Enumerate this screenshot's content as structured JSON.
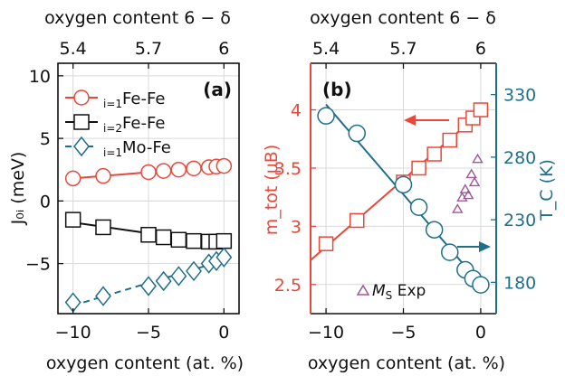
{
  "colors": {
    "red": "#e8473a",
    "black": "#111111",
    "teal": "#1f6f8b",
    "purple": "#a0579a",
    "grid": "#d9d9d9"
  },
  "chart_data": [
    {
      "type": "line",
      "panel_label": "(a)",
      "xlabel": "oxygen content (at. %)",
      "top_xlabel": "oxygen content 6 − δ",
      "ylabel": "J₀ᵢ (meV)",
      "xlim": [
        -11,
        1
      ],
      "ylim": [
        -9,
        11
      ],
      "xticks": [
        -10,
        -5,
        0
      ],
      "xtick_labels": [
        "−10",
        "−5",
        "0"
      ],
      "top_xticks": [
        -10,
        -5,
        0
      ],
      "top_xtick_labels": [
        "5.4",
        "5.7",
        "6"
      ],
      "yticks": [
        -5,
        0,
        5,
        10
      ],
      "ytick_labels": [
        "−5",
        "0",
        "5",
        "10"
      ],
      "grid": true,
      "legend_position": "top-left",
      "series": [
        {
          "name": "i=1 Fe-Fe",
          "legend_sub": "i=1",
          "legend_main": "Fe-Fe",
          "color": "red",
          "marker": "circle",
          "dashed": false,
          "x": [
            -10,
            -8,
            -5,
            -4,
            -3,
            -2,
            -1,
            -0.5,
            0
          ],
          "y": [
            1.8,
            2.0,
            2.3,
            2.4,
            2.5,
            2.6,
            2.7,
            2.75,
            2.8
          ]
        },
        {
          "name": "i=2 Fe-Fe",
          "legend_sub": "i=2",
          "legend_main": "Fe-Fe",
          "color": "black",
          "marker": "square",
          "dashed": false,
          "x": [
            -10,
            -8,
            -5,
            -4,
            -3,
            -2,
            -1,
            -0.5,
            0
          ],
          "y": [
            -1.5,
            -2.1,
            -2.7,
            -2.9,
            -3.1,
            -3.2,
            -3.25,
            -3.25,
            -3.2
          ]
        },
        {
          "name": "i=1 Mo-Fe",
          "legend_sub": "i=1",
          "legend_main": "Mo-Fe",
          "color": "teal",
          "marker": "diamond",
          "dashed": true,
          "x": [
            -10,
            -8,
            -5,
            -4,
            -3,
            -2,
            -1,
            -0.5,
            0
          ],
          "y": [
            -8.1,
            -7.6,
            -6.8,
            -6.4,
            -6.0,
            -5.6,
            -5.0,
            -4.8,
            -4.5
          ]
        }
      ]
    },
    {
      "type": "line",
      "panel_label": "(b)",
      "xlabel": "oxygen content (at. %)",
      "top_xlabel": "oxygen content 6 − δ",
      "ylabel_left": "m_tot (μB)",
      "ylabel_right": "T_C (K)",
      "xlim": [
        -11,
        1
      ],
      "ylim_left": [
        2.25,
        4.4
      ],
      "ylim_right": [
        155,
        355
      ],
      "xticks": [
        -10,
        -5,
        0
      ],
      "xtick_labels": [
        "−10",
        "−5",
        "0"
      ],
      "top_xticks": [
        -10,
        -5,
        0
      ],
      "top_xtick_labels": [
        "5.4",
        "5.7",
        "6"
      ],
      "yticks_left": [
        2.5,
        3,
        3.5,
        4
      ],
      "ytick_labels_left": [
        "2.5",
        "3",
        "3.5",
        "4"
      ],
      "yticks_right": [
        180,
        230,
        280,
        330
      ],
      "ytick_labels_right": [
        "180",
        "230",
        "280",
        "330"
      ],
      "grid": true,
      "series": [
        {
          "name": "m_tot",
          "axis": "left",
          "color": "red",
          "marker": "square",
          "x": [
            -10,
            -8,
            -5,
            -4,
            -3,
            -2,
            -1,
            -0.5,
            0
          ],
          "y": [
            2.85,
            3.05,
            3.38,
            3.5,
            3.62,
            3.74,
            3.87,
            3.93,
            4.0
          ]
        },
        {
          "name": "T_C",
          "axis": "right",
          "color": "teal",
          "marker": "circle",
          "x": [
            -10,
            -8,
            -5,
            -4,
            -3,
            -2,
            -1,
            -0.5,
            0
          ],
          "y": [
            313,
            299,
            258,
            240,
            222,
            204,
            190,
            183,
            178
          ]
        },
        {
          "name": "M_S Exp",
          "legend_main": "M",
          "legend_sub": "S",
          "legend_rest": " Exp",
          "axis": "left",
          "color": "purple",
          "marker": "triangle",
          "legend_position": "bottom-center",
          "x": [
            -1.5,
            -1.2,
            -1.0,
            -0.8,
            -0.6,
            -0.4,
            -0.2
          ],
          "y": [
            3.15,
            3.25,
            3.32,
            3.27,
            3.45,
            3.38,
            3.58
          ]
        }
      ]
    }
  ]
}
